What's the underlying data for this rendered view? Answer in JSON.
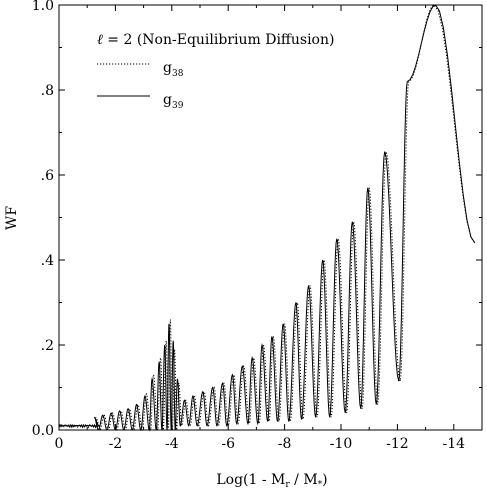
{
  "chart_data": {
    "type": "line",
    "xlabel": "Log(1 - M",
    "xlabel_sub": "r",
    "xlabel_mid": " / M",
    "xlabel_sub2": "*",
    "xlabel_end": ")",
    "ylabel": "WF",
    "xlim": [
      0,
      -15
    ],
    "ylim": [
      0,
      1.0
    ],
    "x_ticks": [
      {
        "value": 0,
        "label": "0"
      },
      {
        "value": -2,
        "label": "-2"
      },
      {
        "value": -4,
        "label": "-4"
      },
      {
        "value": -6,
        "label": "-6"
      },
      {
        "value": -8,
        "label": "-8"
      },
      {
        "value": -10,
        "label": "-10"
      },
      {
        "value": -12,
        "label": "-12"
      },
      {
        "value": -14,
        "label": "-14"
      }
    ],
    "y_ticks": [
      {
        "value": 0.0,
        "label": "0.0"
      },
      {
        "value": 0.2,
        "label": ".2"
      },
      {
        "value": 0.4,
        "label": ".4"
      },
      {
        "value": 0.6,
        "label": ".6"
      },
      {
        "value": 0.8,
        "label": ".8"
      },
      {
        "value": 1.0,
        "label": "1.0"
      }
    ],
    "legend": {
      "placement": "top-left",
      "title_var": "ℓ",
      "title_rest": " = 2 (Non-Equilibrium Diffusion)",
      "entries": [
        {
          "label": "g",
          "sub": "38",
          "style": "dotted"
        },
        {
          "label": "g",
          "sub": "39",
          "style": "solid"
        }
      ]
    },
    "series": [
      {
        "style": "solid",
        "peaks": [
          [
            -1.25,
            0.03
          ],
          [
            -1.55,
            0.035
          ],
          [
            -1.85,
            0.04
          ],
          [
            -2.15,
            0.045
          ],
          [
            -2.45,
            0.05
          ],
          [
            -2.75,
            0.06
          ],
          [
            -3.05,
            0.08
          ],
          [
            -3.3,
            0.12
          ],
          [
            -3.55,
            0.16
          ],
          [
            -3.75,
            0.2
          ],
          [
            -3.9,
            0.25
          ],
          [
            -4.05,
            0.21
          ],
          [
            -4.2,
            0.12
          ],
          [
            -4.45,
            0.07
          ],
          [
            -4.75,
            0.08
          ],
          [
            -5.1,
            0.09
          ],
          [
            -5.45,
            0.1
          ],
          [
            -5.8,
            0.11
          ],
          [
            -6.15,
            0.13
          ],
          [
            -6.5,
            0.15
          ],
          [
            -6.85,
            0.17
          ],
          [
            -7.2,
            0.2
          ],
          [
            -7.55,
            0.22
          ],
          [
            -7.95,
            0.25
          ],
          [
            -8.4,
            0.3
          ],
          [
            -8.85,
            0.34
          ],
          [
            -9.35,
            0.4
          ],
          [
            -9.85,
            0.45
          ],
          [
            -10.4,
            0.49
          ],
          [
            -10.95,
            0.57
          ],
          [
            -11.55,
            0.655
          ],
          [
            -12.35,
            0.82
          ],
          [
            -13.35,
            1.0
          ]
        ],
        "troughs": [
          [
            -1.4,
            0.0
          ],
          [
            -1.7,
            0.0
          ],
          [
            -2.0,
            0.0
          ],
          [
            -2.3,
            0.0
          ],
          [
            -2.6,
            0.0
          ],
          [
            -2.9,
            0.0
          ],
          [
            -3.2,
            0.0
          ],
          [
            -3.45,
            0.0
          ],
          [
            -3.65,
            0.0
          ],
          [
            -3.83,
            0.0
          ],
          [
            -3.98,
            0.0
          ],
          [
            -4.12,
            0.0
          ],
          [
            -4.3,
            0.01
          ],
          [
            -4.6,
            0.01
          ],
          [
            -4.9,
            0.01
          ],
          [
            -5.25,
            0.01
          ],
          [
            -5.6,
            0.01
          ],
          [
            -5.95,
            0.01
          ],
          [
            -6.3,
            0.015
          ],
          [
            -6.7,
            0.015
          ],
          [
            -7.05,
            0.015
          ],
          [
            -7.4,
            0.02
          ],
          [
            -7.75,
            0.02
          ],
          [
            -8.15,
            0.02
          ],
          [
            -8.6,
            0.025
          ],
          [
            -9.1,
            0.03
          ],
          [
            -9.6,
            0.03
          ],
          [
            -10.15,
            0.04
          ],
          [
            -10.7,
            0.05
          ],
          [
            -11.25,
            0.06
          ],
          [
            -12.05,
            0.115
          ]
        ],
        "end": [
          -14.75,
          0.44
        ]
      },
      {
        "style": "dotted",
        "peaks": [
          [
            -1.3,
            0.03
          ],
          [
            -1.6,
            0.035
          ],
          [
            -1.9,
            0.04
          ],
          [
            -2.2,
            0.045
          ],
          [
            -2.5,
            0.05
          ],
          [
            -2.8,
            0.06
          ],
          [
            -3.1,
            0.085
          ],
          [
            -3.35,
            0.13
          ],
          [
            -3.6,
            0.17
          ],
          [
            -3.8,
            0.21
          ],
          [
            -3.95,
            0.26
          ],
          [
            -4.1,
            0.19
          ],
          [
            -4.25,
            0.11
          ],
          [
            -4.5,
            0.07
          ],
          [
            -4.8,
            0.08
          ],
          [
            -5.15,
            0.09
          ],
          [
            -5.5,
            0.1
          ],
          [
            -5.85,
            0.11
          ],
          [
            -6.2,
            0.13
          ],
          [
            -6.55,
            0.15
          ],
          [
            -6.9,
            0.17
          ],
          [
            -7.25,
            0.2
          ],
          [
            -7.6,
            0.22
          ],
          [
            -8.0,
            0.25
          ],
          [
            -8.45,
            0.3
          ],
          [
            -8.9,
            0.34
          ],
          [
            -9.4,
            0.4
          ],
          [
            -9.9,
            0.45
          ],
          [
            -10.45,
            0.49
          ],
          [
            -11.0,
            0.57
          ],
          [
            -11.6,
            0.655
          ],
          [
            -12.4,
            0.82
          ],
          [
            -13.3,
            1.0
          ]
        ],
        "troughs": [
          [
            -1.45,
            0.0
          ],
          [
            -1.75,
            0.0
          ],
          [
            -2.05,
            0.0
          ],
          [
            -2.35,
            0.0
          ],
          [
            -2.65,
            0.0
          ],
          [
            -2.95,
            0.0
          ],
          [
            -3.25,
            0.0
          ],
          [
            -3.5,
            0.0
          ],
          [
            -3.7,
            0.0
          ],
          [
            -3.88,
            0.0
          ],
          [
            -4.02,
            0.0
          ],
          [
            -4.17,
            0.0
          ],
          [
            -4.35,
            0.01
          ],
          [
            -4.65,
            0.01
          ],
          [
            -4.95,
            0.01
          ],
          [
            -5.3,
            0.01
          ],
          [
            -5.65,
            0.01
          ],
          [
            -6.0,
            0.01
          ],
          [
            -6.35,
            0.015
          ],
          [
            -6.75,
            0.015
          ],
          [
            -7.1,
            0.015
          ],
          [
            -7.45,
            0.02
          ],
          [
            -7.8,
            0.02
          ],
          [
            -8.2,
            0.02
          ],
          [
            -8.65,
            0.025
          ],
          [
            -9.15,
            0.03
          ],
          [
            -9.65,
            0.03
          ],
          [
            -10.2,
            0.04
          ],
          [
            -10.75,
            0.05
          ],
          [
            -11.3,
            0.06
          ],
          [
            -12.1,
            0.115
          ]
        ],
        "end": [
          -14.75,
          0.44
        ]
      }
    ]
  }
}
